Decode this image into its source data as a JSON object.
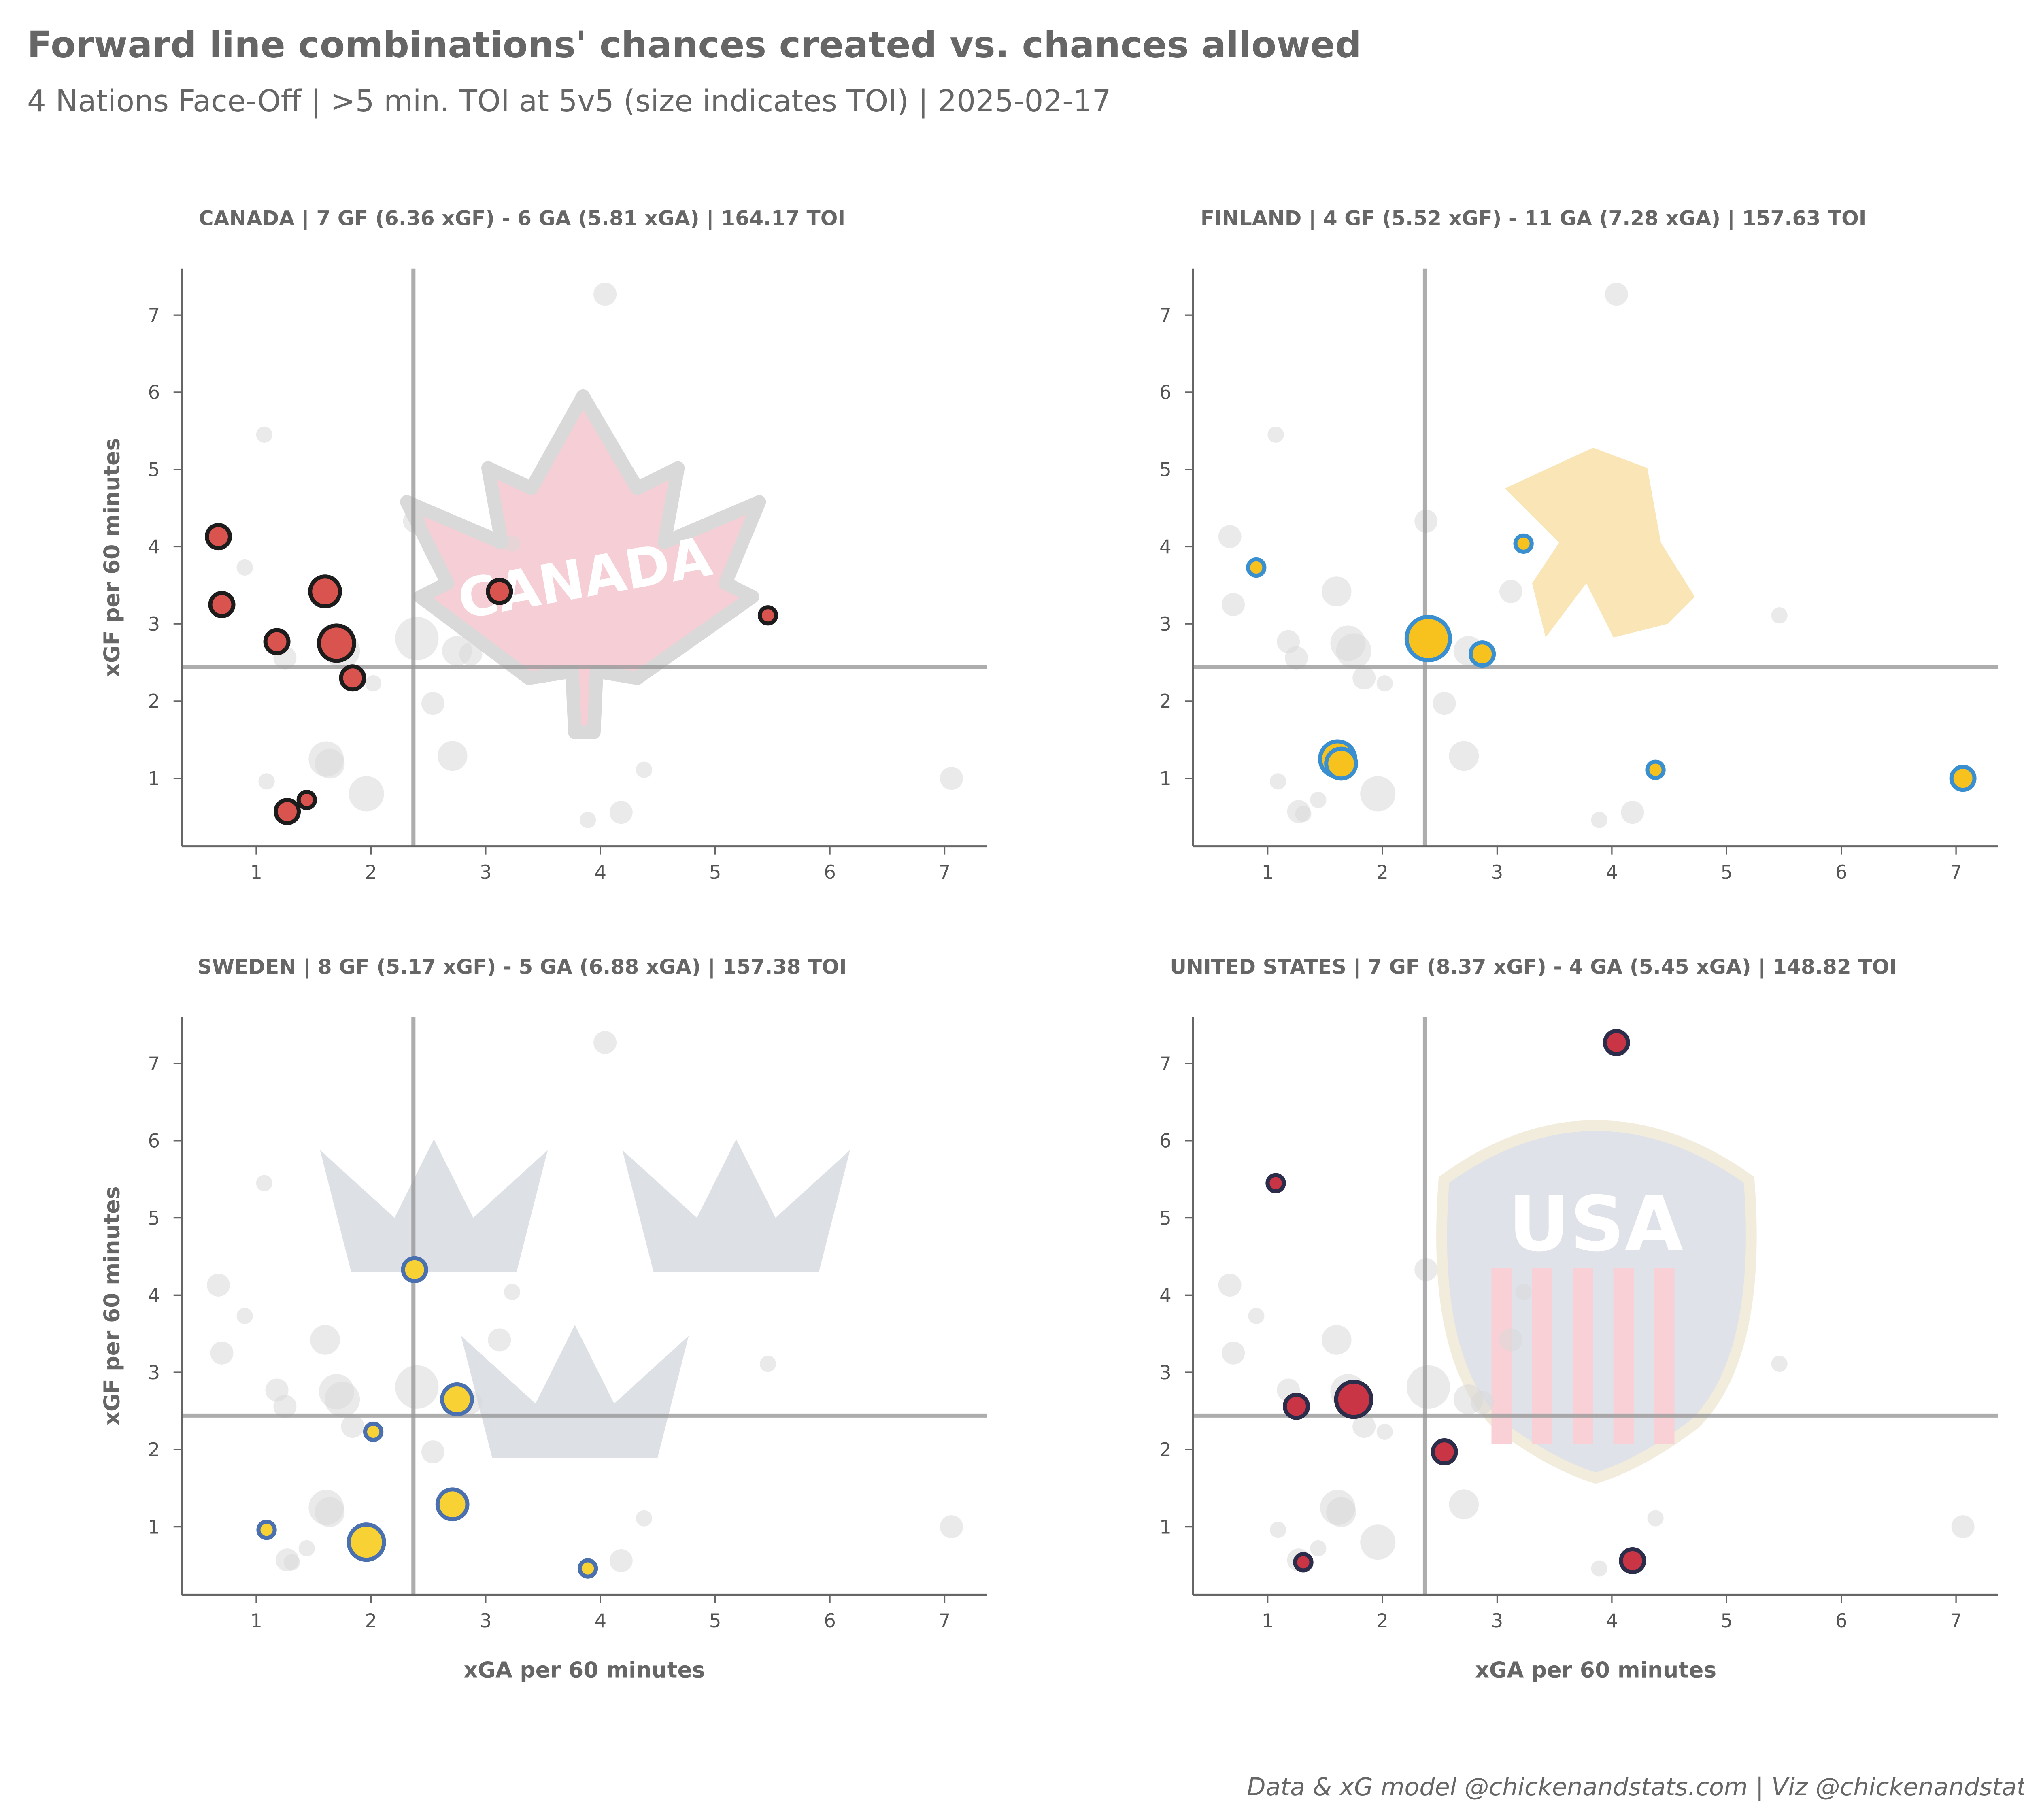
{
  "title": "Forward line combinations' chances created vs. chances allowed",
  "subtitle": "4 Nations Face-Off | >5 min. TOI at 5v5 (size indicates TOI) | 2025-02-17",
  "footer": "Data & xG model @chickenandstats.com | Viz @chickenandstats.com",
  "chart_data": [
    {
      "type": "scatter",
      "team": "CANADA",
      "title": "CANADA | 7 GF (6.36 xGF) - 6 GA (5.81 xGA) | 164.17 TOI",
      "xlabel": "",
      "ylabel": "xGF per 60 minutes",
      "xlim": [
        0.35,
        7.37
      ],
      "ylim": [
        0.12,
        7.6
      ],
      "xticks": [
        1,
        2,
        3,
        4,
        5,
        6,
        7
      ],
      "yticks": [
        1,
        2,
        3,
        4,
        5,
        6,
        7
      ],
      "reference_lines": {
        "x": 2.37,
        "y": 2.44
      },
      "colors": {
        "fill": "#d9534f",
        "edge": "#1c1c1c"
      },
      "logo": "maple-leaf",
      "logo_text": "CANADA",
      "points": [
        {
          "x": 0.67,
          "y": 4.13,
          "toi": "medium"
        },
        {
          "x": 0.7,
          "y": 3.25,
          "toi": "medium"
        },
        {
          "x": 1.18,
          "y": 2.77,
          "toi": "medium"
        },
        {
          "x": 1.6,
          "y": 3.42,
          "toi": "large"
        },
        {
          "x": 1.7,
          "y": 2.75,
          "toi": "xlarge"
        },
        {
          "x": 1.84,
          "y": 2.3,
          "toi": "medium"
        },
        {
          "x": 1.27,
          "y": 0.57,
          "toi": "medium"
        },
        {
          "x": 1.44,
          "y": 0.72,
          "toi": "small"
        },
        {
          "x": 3.12,
          "y": 3.42,
          "toi": "medium"
        },
        {
          "x": 5.46,
          "y": 3.11,
          "toi": "small"
        }
      ]
    },
    {
      "type": "scatter",
      "team": "FINLAND",
      "title": "FINLAND | 4 GF (5.52 xGF) - 11 GA (7.28 xGA) | 157.63 TOI",
      "xlabel": "",
      "ylabel": "",
      "xlim": [
        0.35,
        7.37
      ],
      "ylim": [
        0.12,
        7.6
      ],
      "xticks": [
        1,
        2,
        3,
        4,
        5,
        6,
        7
      ],
      "yticks": [
        1,
        2,
        3,
        4,
        5,
        6,
        7
      ],
      "reference_lines": {
        "x": 2.37,
        "y": 2.44
      },
      "colors": {
        "fill": "#f7c21e",
        "edge": "#3a8fd0"
      },
      "logo": "lion-shield",
      "points": [
        {
          "x": 0.9,
          "y": 3.73,
          "toi": "small"
        },
        {
          "x": 3.23,
          "y": 4.04,
          "toi": "small"
        },
        {
          "x": 2.4,
          "y": 2.81,
          "toi": "xxlarge"
        },
        {
          "x": 2.87,
          "y": 2.61,
          "toi": "medium"
        },
        {
          "x": 1.61,
          "y": 1.25,
          "toi": "xlarge"
        },
        {
          "x": 1.64,
          "y": 1.19,
          "toi": "large"
        },
        {
          "x": 4.38,
          "y": 1.11,
          "toi": "small"
        },
        {
          "x": 7.06,
          "y": 1.0,
          "toi": "medium"
        }
      ]
    },
    {
      "type": "scatter",
      "team": "SWEDEN",
      "title": "SWEDEN | 8 GF (5.17 xGF) - 5 GA (6.88 xGA) | 157.38 TOI",
      "xlabel": "xGA per 60 minutes",
      "ylabel": "xGF per 60 minutes",
      "xlim": [
        0.35,
        7.37
      ],
      "ylim": [
        0.12,
        7.6
      ],
      "xticks": [
        1,
        2,
        3,
        4,
        5,
        6,
        7
      ],
      "yticks": [
        1,
        2,
        3,
        4,
        5,
        6,
        7
      ],
      "reference_lines": {
        "x": 2.37,
        "y": 2.44
      },
      "colors": {
        "fill": "#f8d235",
        "edge": "#4a70b0"
      },
      "logo": "three-crowns",
      "points": [
        {
          "x": 2.38,
          "y": 4.33,
          "toi": "medium"
        },
        {
          "x": 2.75,
          "y": 2.65,
          "toi": "large"
        },
        {
          "x": 2.02,
          "y": 2.23,
          "toi": "small"
        },
        {
          "x": 2.71,
          "y": 1.29,
          "toi": "large"
        },
        {
          "x": 1.09,
          "y": 0.96,
          "toi": "small"
        },
        {
          "x": 1.96,
          "y": 0.8,
          "toi": "xlarge"
        },
        {
          "x": 3.89,
          "y": 0.46,
          "toi": "small"
        }
      ]
    },
    {
      "type": "scatter",
      "team": "UNITED STATES",
      "title": "UNITED STATES | 7 GF (8.37 xGF) - 4 GA (5.45 xGA) | 148.82 TOI",
      "xlabel": "xGA per 60 minutes",
      "ylabel": "",
      "xlim": [
        0.35,
        7.37
      ],
      "ylim": [
        0.12,
        7.6
      ],
      "xticks": [
        1,
        2,
        3,
        4,
        5,
        6,
        7
      ],
      "yticks": [
        1,
        2,
        3,
        4,
        5,
        6,
        7
      ],
      "reference_lines": {
        "x": 2.37,
        "y": 2.44
      },
      "colors": {
        "fill": "#c93545",
        "edge": "#2b2d4a"
      },
      "logo": "usa-shield",
      "logo_text": "USA",
      "points": [
        {
          "x": 4.04,
          "y": 7.27,
          "toi": "medium"
        },
        {
          "x": 1.07,
          "y": 5.45,
          "toi": "small"
        },
        {
          "x": 1.25,
          "y": 2.56,
          "toi": "medium"
        },
        {
          "x": 1.75,
          "y": 2.65,
          "toi": "xlarge"
        },
        {
          "x": 2.54,
          "y": 1.97,
          "toi": "medium"
        },
        {
          "x": 1.31,
          "y": 0.54,
          "toi": "small"
        },
        {
          "x": 4.18,
          "y": 0.56,
          "toi": "medium"
        }
      ]
    }
  ]
}
